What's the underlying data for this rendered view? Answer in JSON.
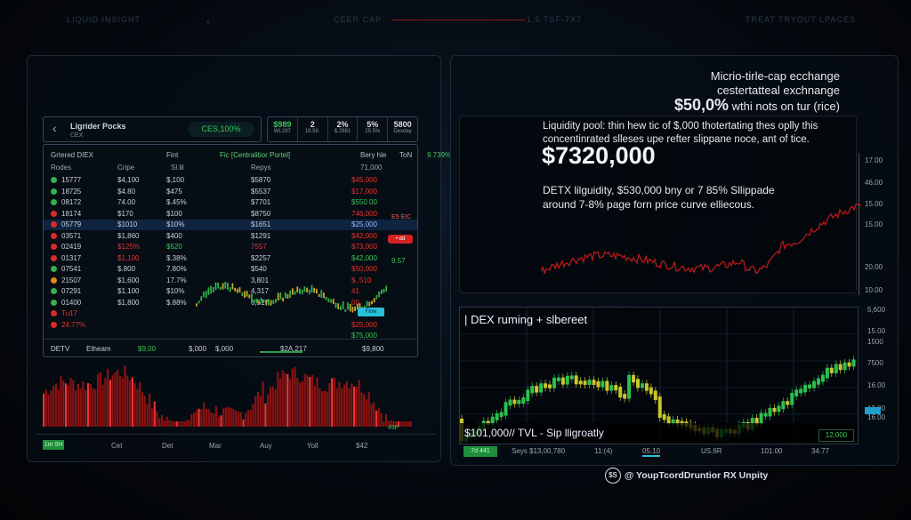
{
  "top": {
    "left": "LIQUID INSIGHT",
    "center": "CEER CAP",
    "center_right": "1.5 TSF-7X7",
    "right": "TREAT TRYOUT LPACES"
  },
  "colors": {
    "green": "#3bc45a",
    "red": "#e3342f",
    "yellow": "#c9c530",
    "cyan": "#28c0d8"
  },
  "pool": {
    "title": "Ligrider Pocks",
    "subtitle": "CEX",
    "pill": "CES,100%",
    "stats": [
      {
        "v": "$989",
        "s": "Wt.297"
      },
      {
        "v": "2",
        "s": "19.59."
      },
      {
        "v": "2%",
        "s": "$.2981"
      },
      {
        "v": "5%",
        "s": "25.5%"
      },
      {
        "v": "5800",
        "s": "Dexday"
      }
    ],
    "columns": [
      "Grtered DIEX",
      "Fint",
      "Fic [Centralitior Portel]",
      "Bery hle",
      "ToN",
      "9.739%"
    ],
    "subheader": [
      "Rodes",
      "Cripe",
      "Sl.lil",
      "Repys",
      "71,000"
    ],
    "rows": [
      {
        "dot": "green",
        "c": [
          "15777",
          "$4,100",
          "$,100",
          "$5870",
          "$45,000"
        ],
        "vc": "red"
      },
      {
        "dot": "green",
        "c": [
          "18725",
          "$4.80",
          "$475",
          "$5537",
          "$17,000"
        ],
        "vc": "red"
      },
      {
        "dot": "green",
        "c": [
          "08172",
          "74.00",
          "$.45%",
          "$7701",
          "$550.00"
        ],
        "vc": "green"
      },
      {
        "dot": "red",
        "c": [
          "18174",
          "$170",
          "$100",
          "$8750",
          "746,000"
        ],
        "vc": "red"
      },
      {
        "dot": "red",
        "c": [
          "05779",
          "$1010",
          "$10%",
          "$1651",
          "$25,000"
        ],
        "vc": "blue",
        "hl": true
      },
      {
        "dot": "red",
        "c": [
          "03571",
          "$1,860",
          "$400",
          "$1291",
          "$42,000"
        ],
        "vc": "red"
      },
      {
        "dot": "red",
        "c": [
          "02419",
          "$125%",
          "$520",
          "7557",
          "$73,000"
        ],
        "vc": "red"
      },
      {
        "dot": "red",
        "c": [
          "01317",
          "$1,100",
          "$.38%",
          "$2257",
          "$42,000"
        ],
        "vc": "green"
      },
      {
        "dot": "green",
        "c": [
          "07541",
          "$.800",
          "7.80%",
          "$540",
          "$50,000"
        ],
        "vc": "red"
      },
      {
        "dot": "orange",
        "c": [
          "21507",
          "$1,600",
          "17.7%",
          "3,801",
          "$..510"
        ],
        "vc": "red"
      },
      {
        "dot": "green",
        "c": [
          "07291",
          "$1,100",
          "$10%",
          "4,317",
          "41"
        ],
        "vc": "red"
      },
      {
        "dot": "green",
        "c": [
          "01400",
          "$1,800",
          "$.88%",
          "6,517",
          "00"
        ],
        "vc": "red"
      },
      {
        "dot": "red",
        "c": [
          "Tu17",
          "",
          "",
          "",
          ""
        ],
        "vc": "red"
      },
      {
        "dot": "red",
        "c": [
          "24.77%",
          "",
          "",
          "",
          "$25,000"
        ],
        "vc": "red"
      },
      {
        "dot": "none",
        "c": [
          "",
          "",
          "",
          "",
          "$75,000"
        ],
        "vc": "green"
      }
    ],
    "side": {
      "chip": "E5 EIC",
      "badge": "• dd",
      "green": "9.57",
      "tag": "Flow"
    },
    "footer": [
      "DETV",
      "Etheam",
      "$9,00",
      "$,000",
      "$,000",
      "$2A,217",
      "$9,800"
    ]
  },
  "volume": {
    "chip": "1m 5H",
    "months": [
      "Cet",
      "Det",
      "Mar",
      "Auy",
      "Yoll",
      "$42"
    ],
    "label": "49P"
  },
  "info": {
    "line1": "Micrio-tirle-cap ecchange",
    "line2": "cestertatteal exchnange",
    "big_pct": "$50,0%",
    "line3": "wthi nots on tur (rice)",
    "desc1": "Liquidity pool: thin hew tic of $,000 thotertating thes oplly this",
    "desc2": "concentinrated slleses upe refter slippane noce, ant of tice.",
    "amount": "$7320,000",
    "desc3": "DETX lilguidity, $530,000 bny or 7 85% Sllippade",
    "desc4": "around 7-8% page forn price curve elliecous.",
    "yaxis": [
      "17.00",
      "46.00",
      "15.00",
      "15.00",
      "20.00",
      "10.00"
    ]
  },
  "candle": {
    "title": "| DEX ruming + slbereet",
    "caption": "$101,000// TVL - Sip lligroatly",
    "value_box": "12,000",
    "yaxis": [
      "5,600",
      "15.00",
      "1500",
      "7500",
      "16.00",
      "12.00",
      "16.00"
    ],
    "chip": "7d 441",
    "bottom": [
      "Seys $13,00,780",
      "11:(4)",
      "05.10",
      "US.6R",
      "101.00",
      "34.77"
    ]
  },
  "brand": {
    "mark": "$S",
    "name": "@ YoupTcordDruntior RX Unpity"
  }
}
